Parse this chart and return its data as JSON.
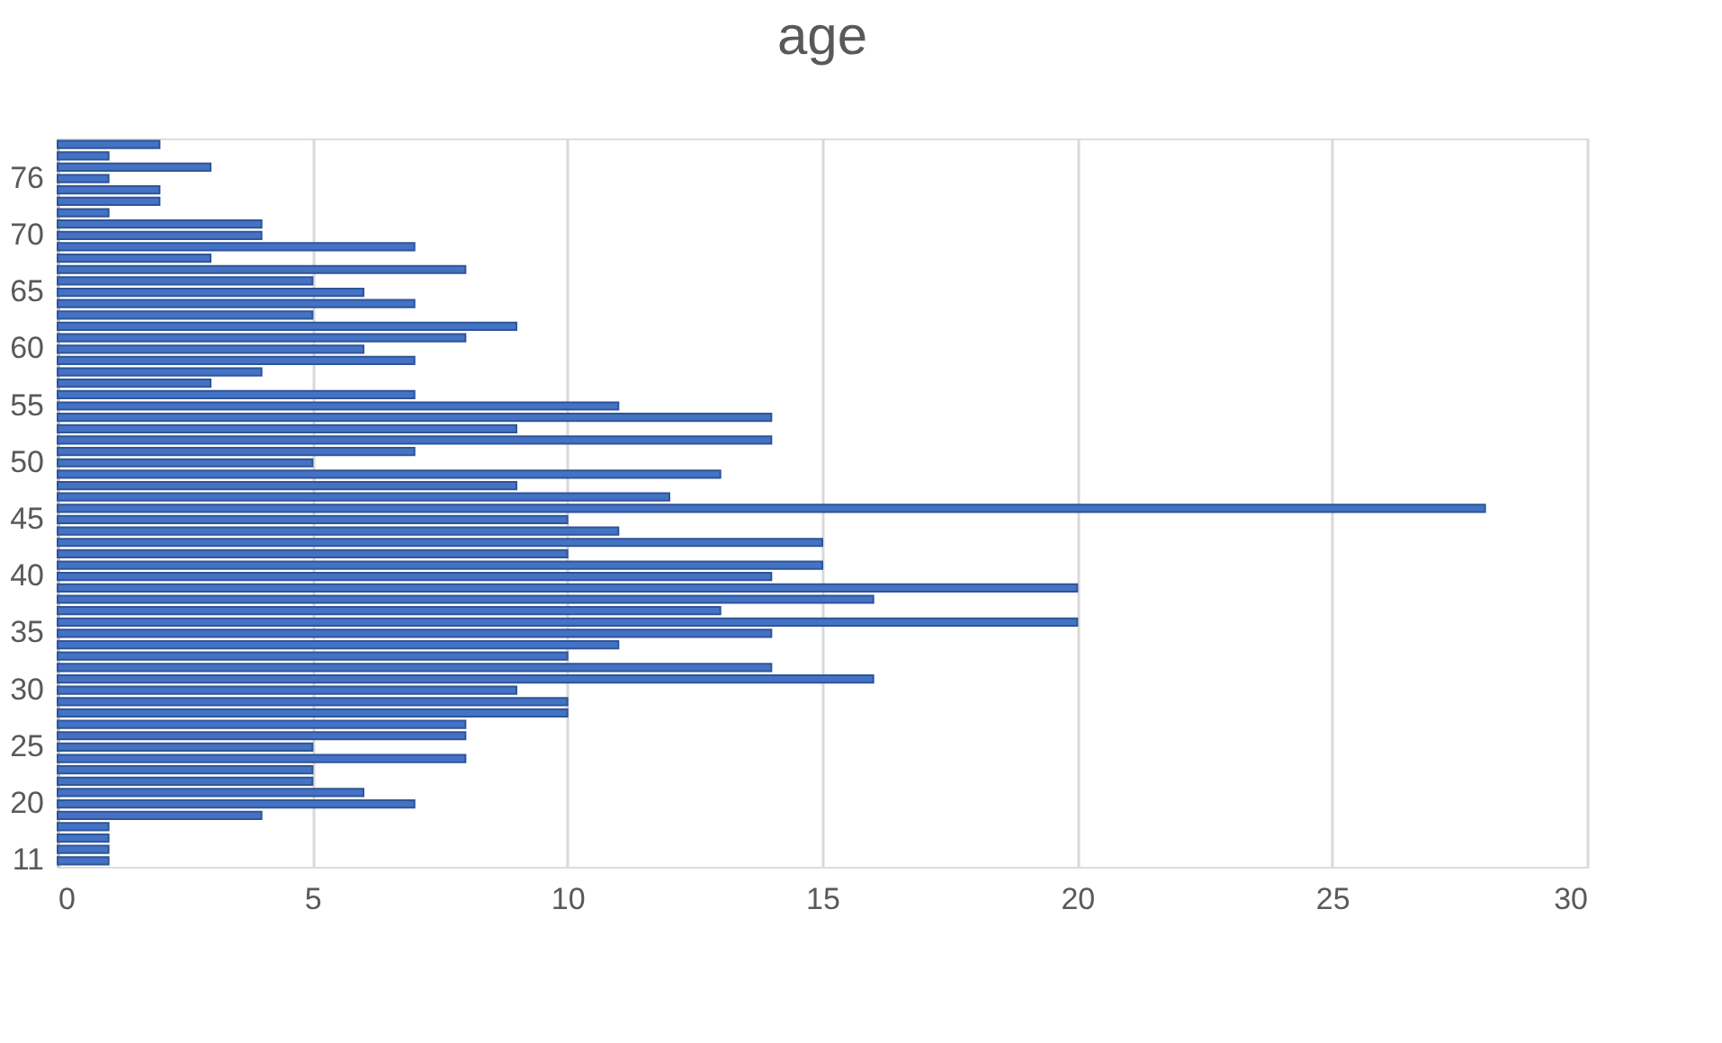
{
  "chart_data": {
    "type": "bar",
    "title": "age",
    "orientation": "horizontal",
    "categories": [
      null,
      null,
      null,
      "76",
      null,
      null,
      null,
      null,
      "70",
      null,
      null,
      null,
      null,
      "65",
      null,
      null,
      null,
      null,
      "60",
      null,
      null,
      null,
      null,
      "55",
      null,
      null,
      null,
      null,
      "50",
      null,
      null,
      null,
      null,
      "45",
      null,
      null,
      null,
      null,
      "40",
      null,
      null,
      null,
      null,
      "35",
      null,
      null,
      null,
      null,
      "30",
      null,
      null,
      null,
      null,
      "25",
      null,
      null,
      null,
      null,
      "20",
      null,
      null,
      null,
      null,
      "11"
    ],
    "values": [
      2,
      1,
      3,
      1,
      2,
      2,
      1,
      4,
      4,
      7,
      3,
      8,
      5,
      6,
      7,
      5,
      9,
      8,
      6,
      7,
      4,
      3,
      7,
      11,
      14,
      9,
      14,
      7,
      5,
      13,
      9,
      12,
      28,
      10,
      11,
      15,
      10,
      15,
      14,
      20,
      16,
      13,
      20,
      14,
      11,
      10,
      14,
      16,
      9,
      10,
      10,
      8,
      8,
      5,
      8,
      5,
      5,
      6,
      7,
      4,
      1,
      1,
      1,
      1
    ],
    "color": "#4472c4",
    "xlim": [
      0,
      30
    ],
    "xticks": [
      0,
      5,
      10,
      15,
      20,
      25,
      30
    ],
    "grid": "x"
  }
}
